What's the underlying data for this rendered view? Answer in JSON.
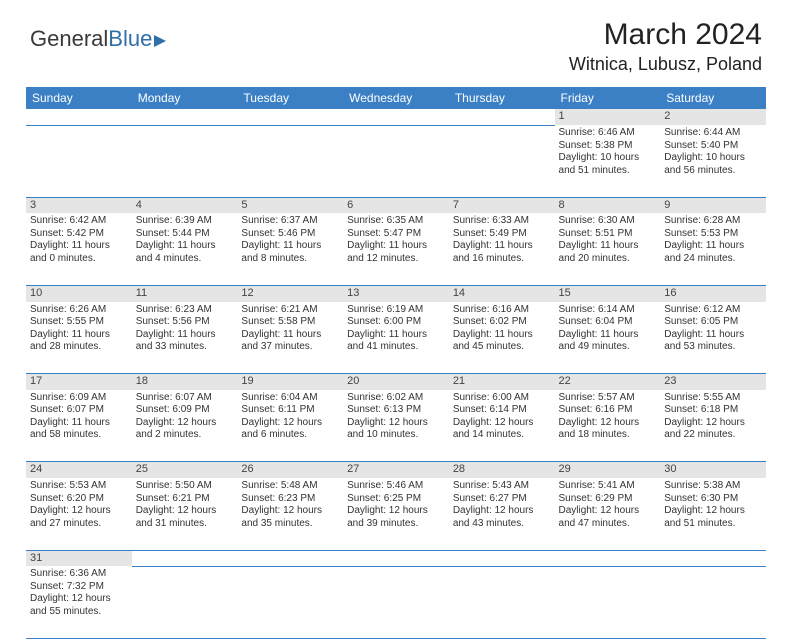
{
  "logo": {
    "text1": "General",
    "text2": "Blue"
  },
  "title": "March 2024",
  "location": "Witnica, Lubusz, Poland",
  "day_headers": [
    "Sunday",
    "Monday",
    "Tuesday",
    "Wednesday",
    "Thursday",
    "Friday",
    "Saturday"
  ],
  "colors": {
    "header_bg": "#3b7fc4",
    "header_text": "#ffffff",
    "daynum_bg": "#e5e5e5",
    "cell_border": "#3b7fc4",
    "text": "#333333"
  },
  "weeks": [
    [
      null,
      null,
      null,
      null,
      null,
      {
        "n": "1",
        "sunrise": "Sunrise: 6:46 AM",
        "sunset": "Sunset: 5:38 PM",
        "day1": "Daylight: 10 hours",
        "day2": "and 51 minutes."
      },
      {
        "n": "2",
        "sunrise": "Sunrise: 6:44 AM",
        "sunset": "Sunset: 5:40 PM",
        "day1": "Daylight: 10 hours",
        "day2": "and 56 minutes."
      }
    ],
    [
      {
        "n": "3",
        "sunrise": "Sunrise: 6:42 AM",
        "sunset": "Sunset: 5:42 PM",
        "day1": "Daylight: 11 hours",
        "day2": "and 0 minutes."
      },
      {
        "n": "4",
        "sunrise": "Sunrise: 6:39 AM",
        "sunset": "Sunset: 5:44 PM",
        "day1": "Daylight: 11 hours",
        "day2": "and 4 minutes."
      },
      {
        "n": "5",
        "sunrise": "Sunrise: 6:37 AM",
        "sunset": "Sunset: 5:46 PM",
        "day1": "Daylight: 11 hours",
        "day2": "and 8 minutes."
      },
      {
        "n": "6",
        "sunrise": "Sunrise: 6:35 AM",
        "sunset": "Sunset: 5:47 PM",
        "day1": "Daylight: 11 hours",
        "day2": "and 12 minutes."
      },
      {
        "n": "7",
        "sunrise": "Sunrise: 6:33 AM",
        "sunset": "Sunset: 5:49 PM",
        "day1": "Daylight: 11 hours",
        "day2": "and 16 minutes."
      },
      {
        "n": "8",
        "sunrise": "Sunrise: 6:30 AM",
        "sunset": "Sunset: 5:51 PM",
        "day1": "Daylight: 11 hours",
        "day2": "and 20 minutes."
      },
      {
        "n": "9",
        "sunrise": "Sunrise: 6:28 AM",
        "sunset": "Sunset: 5:53 PM",
        "day1": "Daylight: 11 hours",
        "day2": "and 24 minutes."
      }
    ],
    [
      {
        "n": "10",
        "sunrise": "Sunrise: 6:26 AM",
        "sunset": "Sunset: 5:55 PM",
        "day1": "Daylight: 11 hours",
        "day2": "and 28 minutes."
      },
      {
        "n": "11",
        "sunrise": "Sunrise: 6:23 AM",
        "sunset": "Sunset: 5:56 PM",
        "day1": "Daylight: 11 hours",
        "day2": "and 33 minutes."
      },
      {
        "n": "12",
        "sunrise": "Sunrise: 6:21 AM",
        "sunset": "Sunset: 5:58 PM",
        "day1": "Daylight: 11 hours",
        "day2": "and 37 minutes."
      },
      {
        "n": "13",
        "sunrise": "Sunrise: 6:19 AM",
        "sunset": "Sunset: 6:00 PM",
        "day1": "Daylight: 11 hours",
        "day2": "and 41 minutes."
      },
      {
        "n": "14",
        "sunrise": "Sunrise: 6:16 AM",
        "sunset": "Sunset: 6:02 PM",
        "day1": "Daylight: 11 hours",
        "day2": "and 45 minutes."
      },
      {
        "n": "15",
        "sunrise": "Sunrise: 6:14 AM",
        "sunset": "Sunset: 6:04 PM",
        "day1": "Daylight: 11 hours",
        "day2": "and 49 minutes."
      },
      {
        "n": "16",
        "sunrise": "Sunrise: 6:12 AM",
        "sunset": "Sunset: 6:05 PM",
        "day1": "Daylight: 11 hours",
        "day2": "and 53 minutes."
      }
    ],
    [
      {
        "n": "17",
        "sunrise": "Sunrise: 6:09 AM",
        "sunset": "Sunset: 6:07 PM",
        "day1": "Daylight: 11 hours",
        "day2": "and 58 minutes."
      },
      {
        "n": "18",
        "sunrise": "Sunrise: 6:07 AM",
        "sunset": "Sunset: 6:09 PM",
        "day1": "Daylight: 12 hours",
        "day2": "and 2 minutes."
      },
      {
        "n": "19",
        "sunrise": "Sunrise: 6:04 AM",
        "sunset": "Sunset: 6:11 PM",
        "day1": "Daylight: 12 hours",
        "day2": "and 6 minutes."
      },
      {
        "n": "20",
        "sunrise": "Sunrise: 6:02 AM",
        "sunset": "Sunset: 6:13 PM",
        "day1": "Daylight: 12 hours",
        "day2": "and 10 minutes."
      },
      {
        "n": "21",
        "sunrise": "Sunrise: 6:00 AM",
        "sunset": "Sunset: 6:14 PM",
        "day1": "Daylight: 12 hours",
        "day2": "and 14 minutes."
      },
      {
        "n": "22",
        "sunrise": "Sunrise: 5:57 AM",
        "sunset": "Sunset: 6:16 PM",
        "day1": "Daylight: 12 hours",
        "day2": "and 18 minutes."
      },
      {
        "n": "23",
        "sunrise": "Sunrise: 5:55 AM",
        "sunset": "Sunset: 6:18 PM",
        "day1": "Daylight: 12 hours",
        "day2": "and 22 minutes."
      }
    ],
    [
      {
        "n": "24",
        "sunrise": "Sunrise: 5:53 AM",
        "sunset": "Sunset: 6:20 PM",
        "day1": "Daylight: 12 hours",
        "day2": "and 27 minutes."
      },
      {
        "n": "25",
        "sunrise": "Sunrise: 5:50 AM",
        "sunset": "Sunset: 6:21 PM",
        "day1": "Daylight: 12 hours",
        "day2": "and 31 minutes."
      },
      {
        "n": "26",
        "sunrise": "Sunrise: 5:48 AM",
        "sunset": "Sunset: 6:23 PM",
        "day1": "Daylight: 12 hours",
        "day2": "and 35 minutes."
      },
      {
        "n": "27",
        "sunrise": "Sunrise: 5:46 AM",
        "sunset": "Sunset: 6:25 PM",
        "day1": "Daylight: 12 hours",
        "day2": "and 39 minutes."
      },
      {
        "n": "28",
        "sunrise": "Sunrise: 5:43 AM",
        "sunset": "Sunset: 6:27 PM",
        "day1": "Daylight: 12 hours",
        "day2": "and 43 minutes."
      },
      {
        "n": "29",
        "sunrise": "Sunrise: 5:41 AM",
        "sunset": "Sunset: 6:29 PM",
        "day1": "Daylight: 12 hours",
        "day2": "and 47 minutes."
      },
      {
        "n": "30",
        "sunrise": "Sunrise: 5:38 AM",
        "sunset": "Sunset: 6:30 PM",
        "day1": "Daylight: 12 hours",
        "day2": "and 51 minutes."
      }
    ],
    [
      {
        "n": "31",
        "sunrise": "Sunrise: 6:36 AM",
        "sunset": "Sunset: 7:32 PM",
        "day1": "Daylight: 12 hours",
        "day2": "and 55 minutes."
      },
      null,
      null,
      null,
      null,
      null,
      null
    ]
  ]
}
